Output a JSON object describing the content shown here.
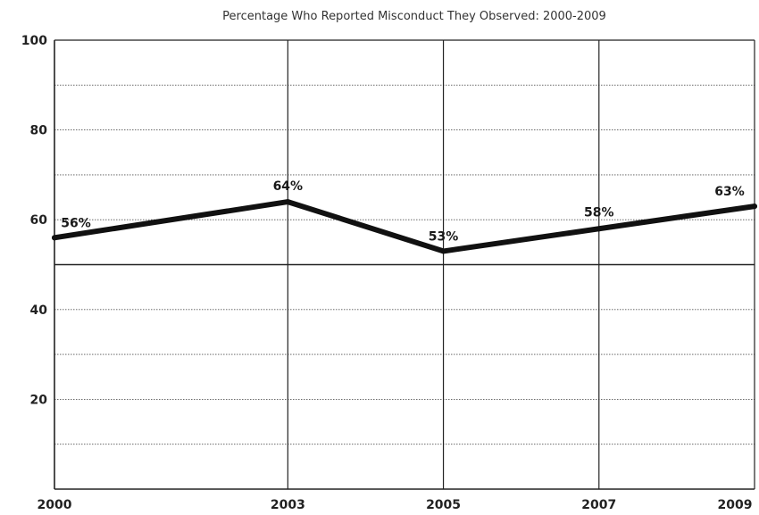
{
  "chart_data": {
    "type": "line",
    "title": "Percentage Who Reported Misconduct They Observed: 2000-2009",
    "xlabel": "",
    "ylabel": "",
    "categories": [
      "2000",
      "2003",
      "2005",
      "2007",
      "2009"
    ],
    "x": [
      2000,
      2003,
      2005,
      2007,
      2009
    ],
    "series": [
      {
        "values": [
          56,
          64,
          53,
          58,
          63
        ],
        "labels": [
          "56%",
          "64%",
          "53%",
          "58%",
          "63%"
        ]
      }
    ],
    "ylim": [
      0,
      100
    ],
    "yticks_labeled": [
      "20",
      "40",
      "60",
      "80",
      "100"
    ],
    "yticks_gridlines": [
      10,
      20,
      30,
      40,
      50,
      60,
      70,
      80,
      90,
      100
    ],
    "grid": true,
    "legend": "none",
    "colors": {
      "line": "#111111",
      "grid": "#555555",
      "axis": "#222222",
      "background": "#ffffff"
    }
  }
}
